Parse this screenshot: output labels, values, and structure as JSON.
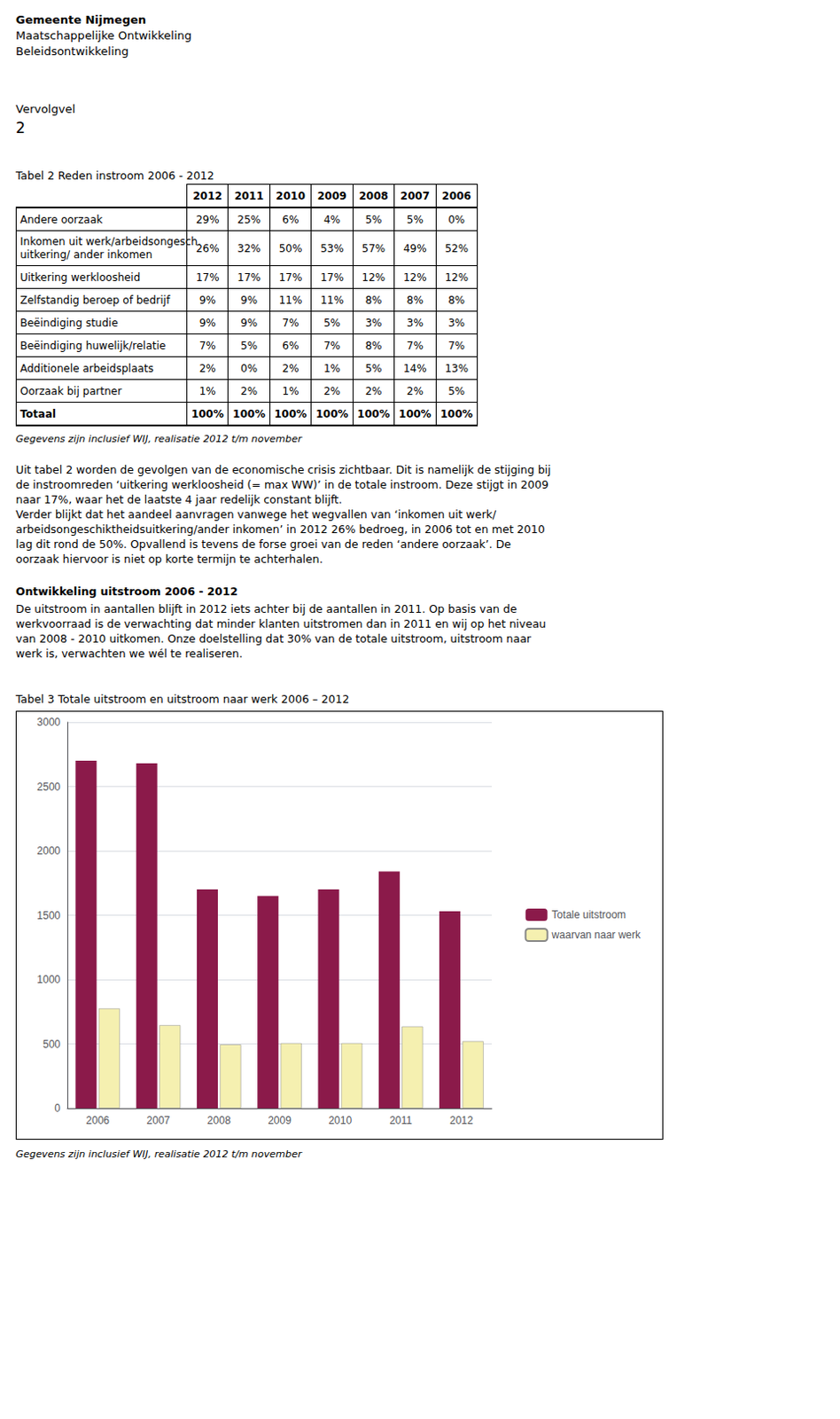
{
  "header": [
    "Gemeente Nijmegen",
    "Maatschappelijke Ontwikkeling",
    "Beleidsontwikkeling"
  ],
  "page_label": "Vervolgvel",
  "page_number": "2",
  "chart_data": [
    {
      "type": "table",
      "title": "Tabel 2 Reden instroom 2006 - 2012",
      "columns": [
        "2012",
        "2011",
        "2010",
        "2009",
        "2008",
        "2007",
        "2006"
      ],
      "rows": [
        {
          "label": [
            "Andere oorzaak"
          ],
          "values": [
            "29%",
            "25%",
            "6%",
            "4%",
            "5%",
            "5%",
            "0%"
          ]
        },
        {
          "label": [
            "Inkomen uit werk/arbeidsongesch.",
            "uitkering/ ander inkomen"
          ],
          "values": [
            "26%",
            "32%",
            "50%",
            "53%",
            "57%",
            "49%",
            "52%"
          ]
        },
        {
          "label": [
            "Uitkering werkloosheid"
          ],
          "values": [
            "17%",
            "17%",
            "17%",
            "17%",
            "12%",
            "12%",
            "12%"
          ]
        },
        {
          "label": [
            "Zelfstandig beroep of bedrijf"
          ],
          "values": [
            "9%",
            "9%",
            "11%",
            "11%",
            "8%",
            "8%",
            "8%"
          ]
        },
        {
          "label": [
            "Beëindiging studie"
          ],
          "values": [
            "9%",
            "9%",
            "7%",
            "5%",
            "3%",
            "3%",
            "3%"
          ]
        },
        {
          "label": [
            "Beëindiging huwelijk/relatie"
          ],
          "values": [
            "7%",
            "5%",
            "6%",
            "7%",
            "8%",
            "7%",
            "7%"
          ]
        },
        {
          "label": [
            "Additionele arbeidsplaats"
          ],
          "values": [
            "2%",
            "0%",
            "2%",
            "1%",
            "5%",
            "14%",
            "13%"
          ]
        },
        {
          "label": [
            "Oorzaak bij partner"
          ],
          "values": [
            "1%",
            "2%",
            "1%",
            "2%",
            "2%",
            "2%",
            "5%"
          ]
        },
        {
          "label": [
            "Totaal"
          ],
          "values": [
            "100%",
            "100%",
            "100%",
            "100%",
            "100%",
            "100%",
            "100%"
          ]
        }
      ],
      "footnote": "Gegevens zijn inclusief WIJ, realisatie 2012 t/m november"
    },
    {
      "type": "bar",
      "title": "Tabel 3 Totale uitstroom en uitstroom naar werk 2006 – 2012",
      "categories": [
        "2006",
        "2007",
        "2008",
        "2009",
        "2010",
        "2011",
        "2012"
      ],
      "series": [
        {
          "name": "Totale uitstroom",
          "color": "#8B1A4A",
          "values": [
            2700,
            2680,
            1700,
            1650,
            1700,
            1840,
            1530
          ]
        },
        {
          "name": "waarvan naar werk",
          "color": "#F5F0B0",
          "values": [
            775,
            645,
            495,
            505,
            505,
            635,
            520
          ]
        }
      ],
      "ylim": [
        0,
        3000
      ],
      "yticks": [
        0,
        500,
        1000,
        1500,
        2000,
        2500,
        3000
      ],
      "grid": true,
      "legend": "right",
      "footnote": "Gegevens zijn inclusief WIJ, realisatie 2012 t/m november"
    }
  ],
  "paragraphs": [
    {
      "lines": [
        "Uit tabel 2 worden de gevolgen van de economische crisis zichtbaar. Dit is namelijk de stijging bij",
        "de instroomreden ‘uitkering werkloosheid (= max WW)’ in de totale instroom. Deze stijgt in 2009",
        "naar 17%, waar het de laatste 4 jaar redelijk constant blijft.",
        "Verder blijkt dat het aandeel aanvragen vanwege het wegvallen van ‘inkomen uit werk/",
        "arbeidsongeschiktheidsuitkering/ander inkomen’ in 2012 26% bedroeg, in 2006 tot en met 2010",
        "lag dit rond de 50%. Opvallend is tevens de forse groei van de reden ‘andere oorzaak’. De",
        "oorzaak hiervoor is niet op korte termijn te achterhalen."
      ]
    },
    {
      "title": "Ontwikkeling uitstroom 2006 - 2012",
      "lines": [
        "De uitstroom in aantallen blijft in 2012 iets achter bij de aantallen in 2011. Op basis van de",
        "werkvoorraad is de verwachting dat minder klanten uitstromen dan in 2011 en wij op het niveau",
        "van 2008 - 2010 uitkomen. Onze doelstelling dat 30% van de totale uitstroom, uitstroom naar",
        "werk is, verwachten we wél te realiseren."
      ]
    }
  ]
}
